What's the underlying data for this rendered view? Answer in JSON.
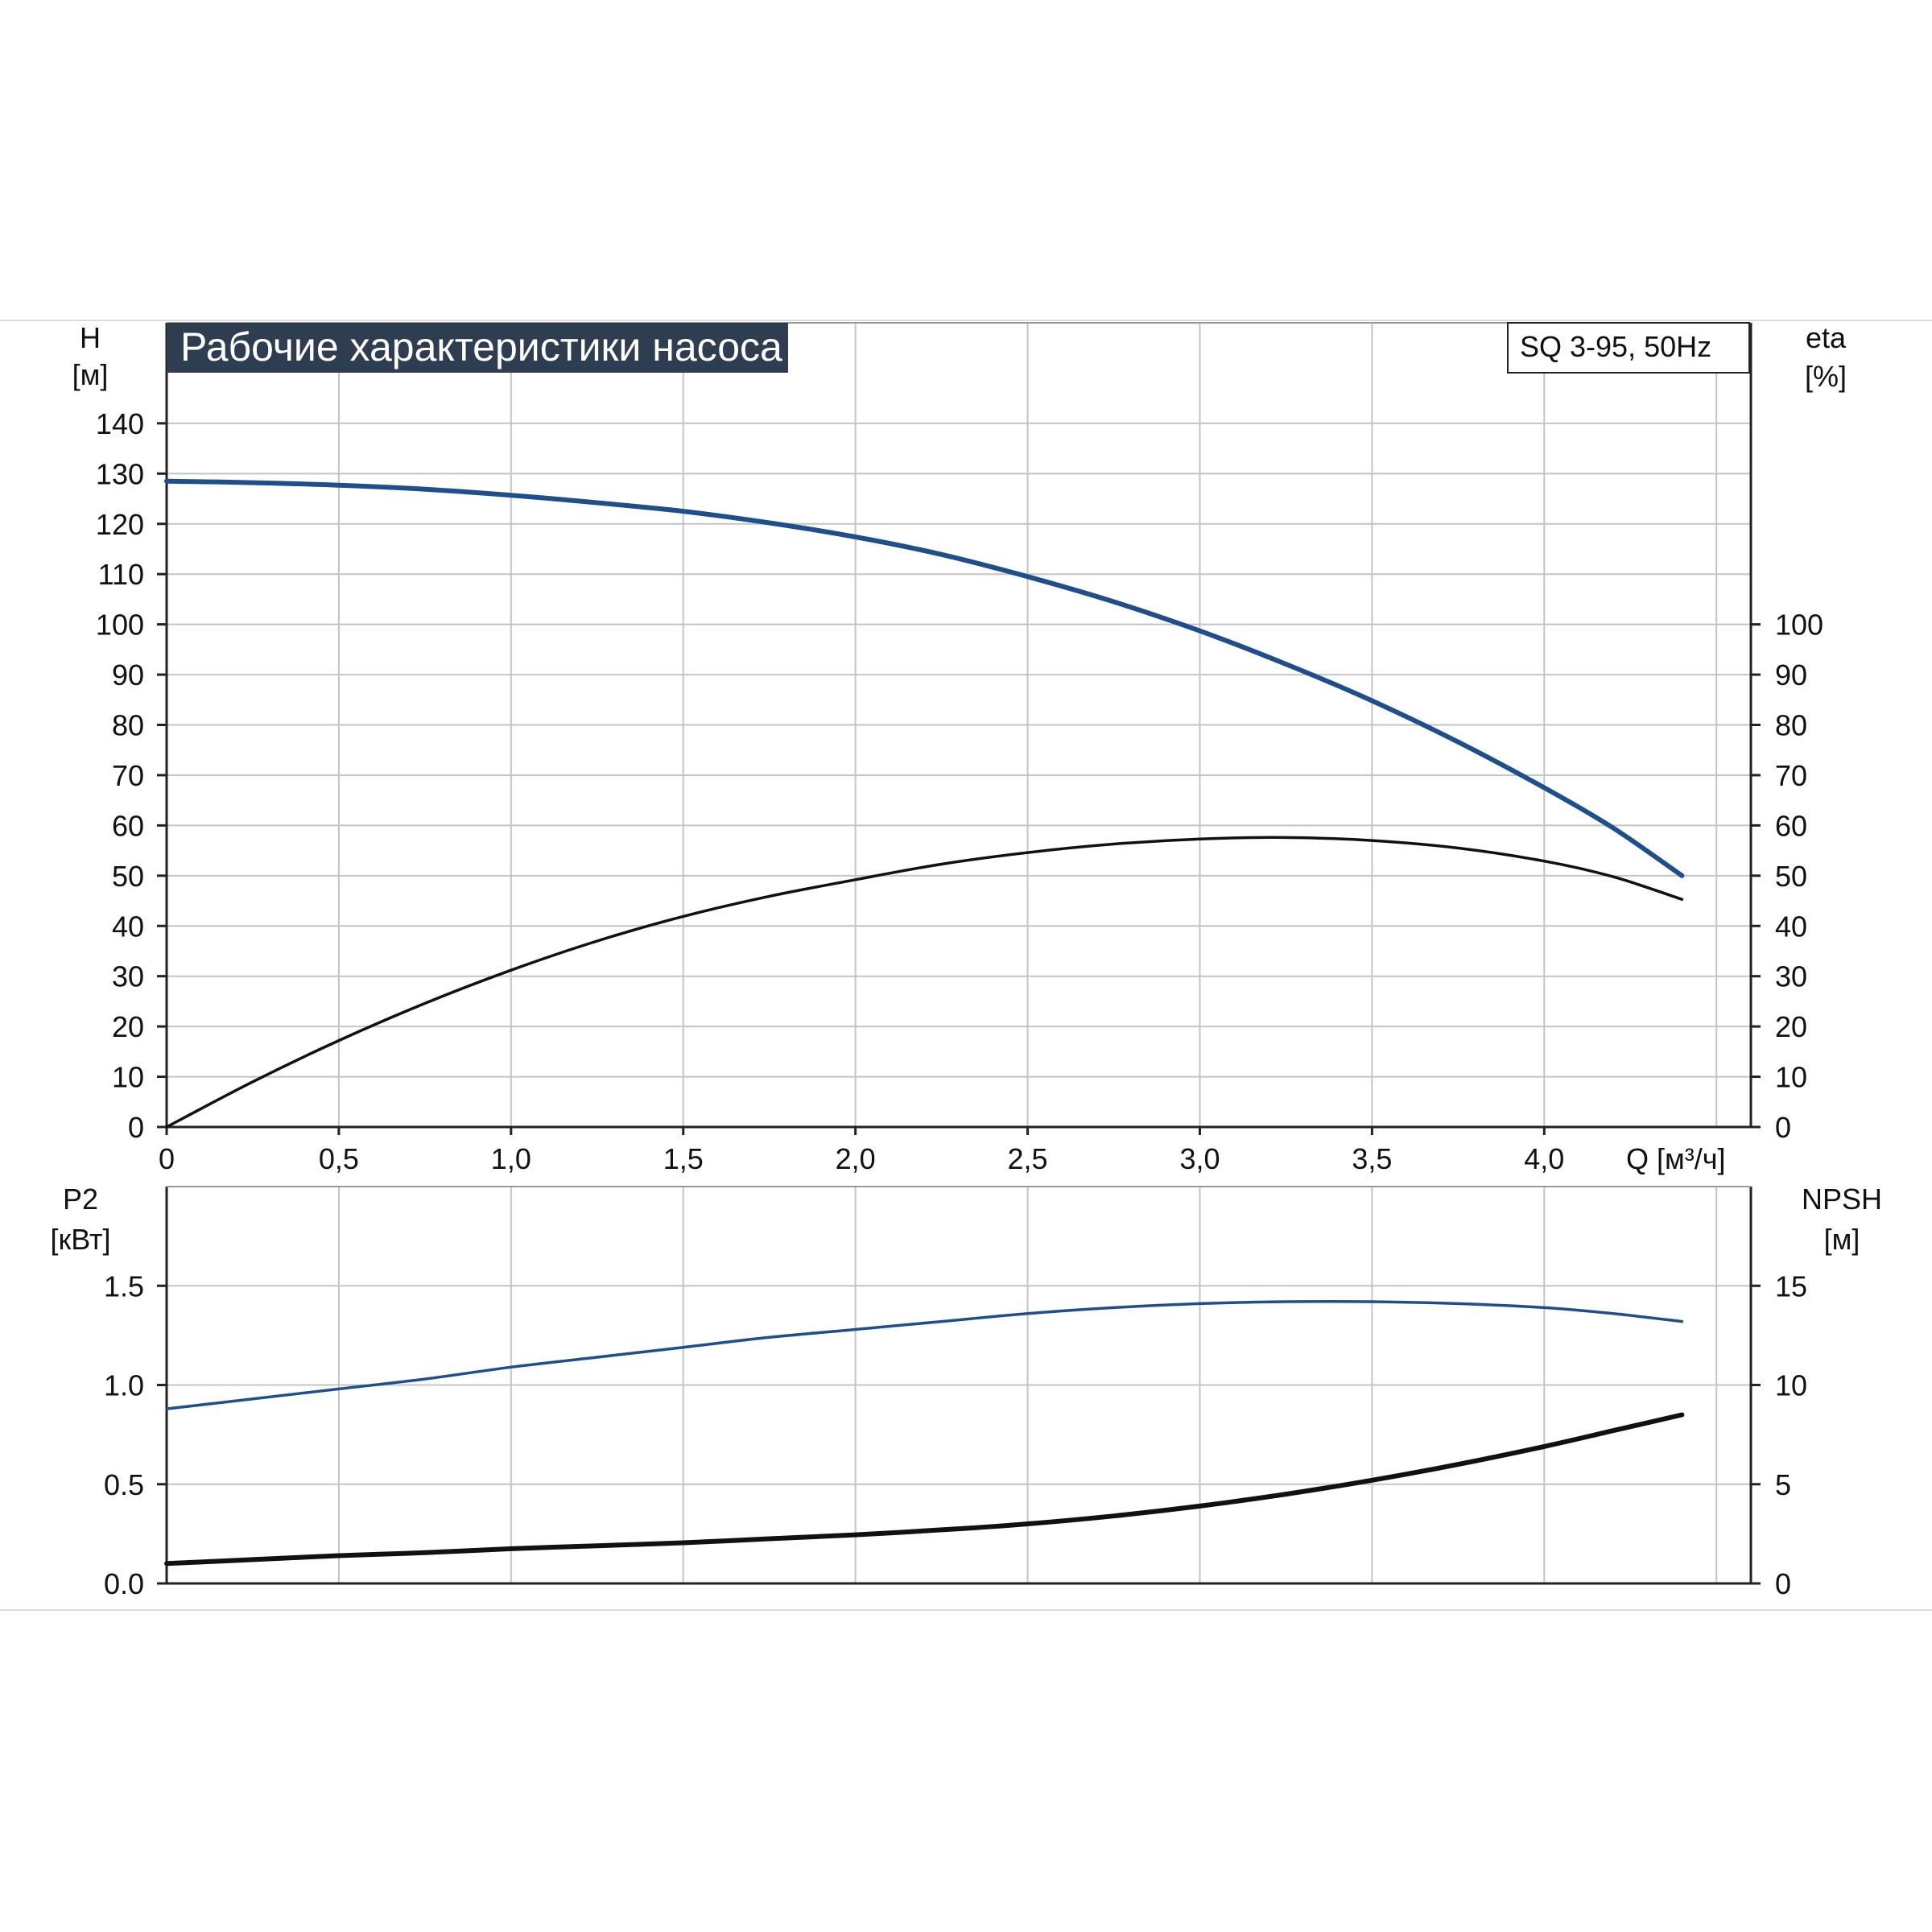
{
  "chart_data": [
    {
      "type": "line",
      "title": "Рабочие характеристики насоса",
      "model": "SQ 3-95, 50Hz",
      "xlabel": "Q [м³/ч]",
      "ylabel": "H",
      "ylabel_unit": "[м]",
      "y2label": "eta",
      "y2label_unit": "[%]",
      "xlim": [
        0,
        4.6
      ],
      "ylim": [
        0,
        160
      ],
      "y2lim": [
        0,
        160
      ],
      "x_ticks": [
        "0",
        "0,5",
        "1,0",
        "1,5",
        "2,0",
        "2,5",
        "3,0",
        "3,5",
        "4,0"
      ],
      "x_tick_values": [
        0,
        0.5,
        1.0,
        1.5,
        2.0,
        2.5,
        3.0,
        3.5,
        4.0
      ],
      "y_ticks": [
        "0",
        "10",
        "20",
        "30",
        "40",
        "50",
        "60",
        "70",
        "80",
        "90",
        "100",
        "110",
        "120",
        "130",
        "140"
      ],
      "y_tick_values": [
        0,
        10,
        20,
        30,
        40,
        50,
        60,
        70,
        80,
        90,
        100,
        110,
        120,
        130,
        140
      ],
      "y2_ticks": [
        "0",
        "10",
        "20",
        "30",
        "40",
        "50",
        "60",
        "70",
        "80",
        "90",
        "100"
      ],
      "y2_tick_values": [
        0,
        10,
        20,
        30,
        40,
        50,
        60,
        70,
        80,
        90,
        100
      ],
      "grid": true,
      "series": [
        {
          "color": "#1f4e8c",
          "axis": "left",
          "x": [
            0,
            0.25,
            0.5,
            0.75,
            1.0,
            1.25,
            1.5,
            1.75,
            2.0,
            2.25,
            2.5,
            2.75,
            3.0,
            3.25,
            3.5,
            3.75,
            4.0,
            4.2,
            4.4
          ],
          "values": [
            128.5,
            128.2,
            127.7,
            126.9,
            125.7,
            124.2,
            122.5,
            120.2,
            117.4,
            113.9,
            109.5,
            104.5,
            98.7,
            92.1,
            84.8,
            76.6,
            67.5,
            59.5,
            50.0
          ]
        },
        {
          "color": "#111111",
          "axis": "right",
          "x": [
            0,
            0.25,
            0.5,
            0.75,
            1.0,
            1.25,
            1.5,
            1.75,
            2.0,
            2.25,
            2.5,
            2.75,
            3.0,
            3.25,
            3.5,
            3.75,
            4.0,
            4.2,
            4.4
          ],
          "values": [
            0,
            9.0,
            17.2,
            24.6,
            31.2,
            37.0,
            41.9,
            45.9,
            49.2,
            52.3,
            54.6,
            56.3,
            57.3,
            57.6,
            57.0,
            55.5,
            52.9,
            49.8,
            45.3
          ]
        }
      ]
    },
    {
      "type": "line",
      "title": "",
      "xlabel": "",
      "ylabel": "P2",
      "ylabel_unit": "[кВт]",
      "y2label": "NPSH",
      "y2label_unit": "[м]",
      "xlim": [
        0,
        4.6
      ],
      "ylim": [
        0,
        2.0
      ],
      "y2lim": [
        0,
        20
      ],
      "y_ticks": [
        "0.0",
        "0.5",
        "1.0",
        "1.5"
      ],
      "y_tick_values": [
        0,
        0.5,
        1.0,
        1.5
      ],
      "y2_ticks": [
        "0",
        "5",
        "10",
        "15"
      ],
      "y2_tick_values": [
        0,
        5,
        10,
        15
      ],
      "grid": true,
      "series": [
        {
          "color": "#1f4e8c",
          "axis": "left",
          "x": [
            0,
            0.25,
            0.5,
            0.75,
            1.0,
            1.25,
            1.5,
            1.75,
            2.0,
            2.25,
            2.5,
            2.75,
            3.0,
            3.25,
            3.5,
            3.75,
            4.0,
            4.2,
            4.4
          ],
          "values": [
            0.88,
            0.93,
            0.98,
            1.03,
            1.09,
            1.14,
            1.19,
            1.24,
            1.28,
            1.32,
            1.36,
            1.39,
            1.41,
            1.42,
            1.42,
            1.41,
            1.39,
            1.36,
            1.32
          ]
        },
        {
          "color": "#111111",
          "axis": "right",
          "x": [
            0,
            0.25,
            0.5,
            0.75,
            1.0,
            1.25,
            1.5,
            1.75,
            2.0,
            2.25,
            2.5,
            2.75,
            3.0,
            3.25,
            3.5,
            3.75,
            4.0,
            4.2,
            4.4
          ],
          "values": [
            1.0,
            1.2,
            1.4,
            1.55,
            1.75,
            1.9,
            2.05,
            2.25,
            2.45,
            2.7,
            3.0,
            3.4,
            3.9,
            4.5,
            5.2,
            6.0,
            6.9,
            7.7,
            8.5
          ]
        }
      ]
    }
  ]
}
